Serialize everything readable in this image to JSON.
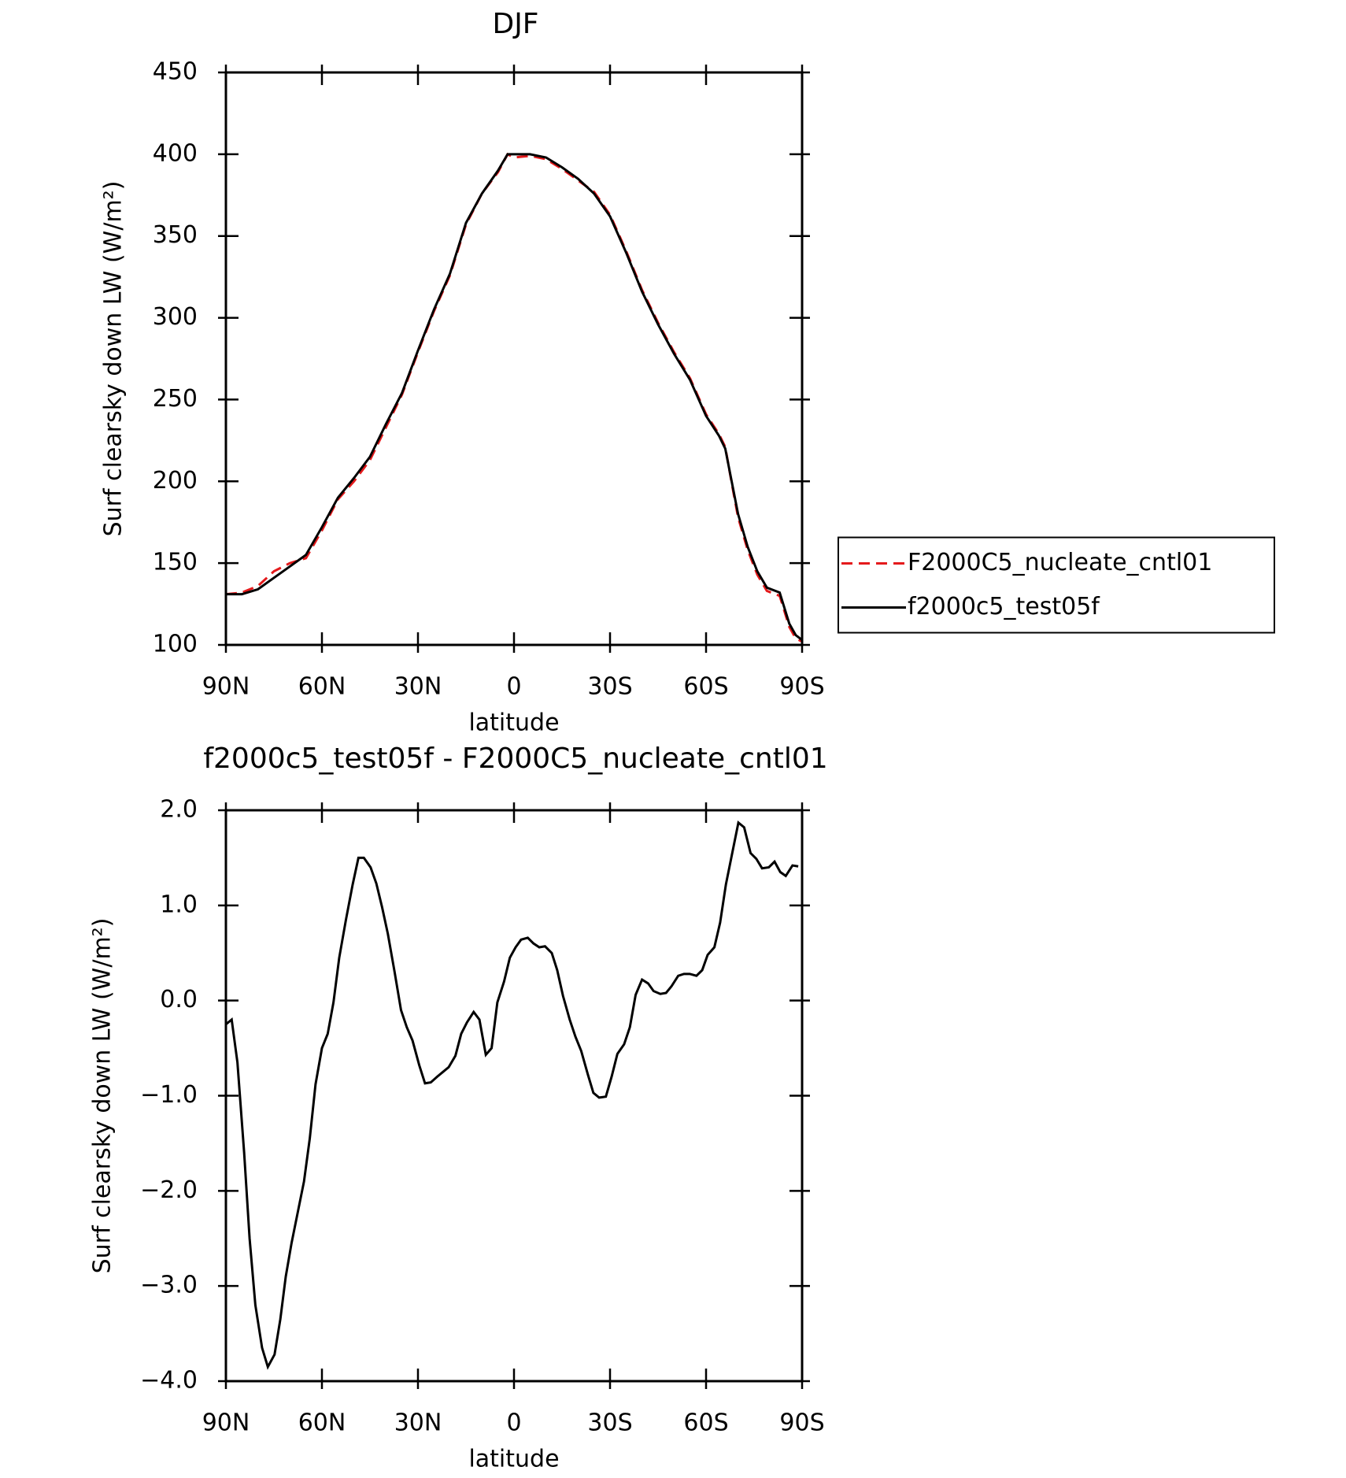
{
  "chart_data": [
    {
      "type": "line",
      "title": "DJF",
      "x_label": "latitude",
      "y_label": "Surf clearsky down LW (W/m²)",
      "x": [
        90,
        85,
        80,
        75,
        70,
        65,
        60,
        55,
        50,
        45,
        40,
        35,
        30,
        25,
        20,
        15,
        10,
        5,
        2,
        0,
        -5,
        -10,
        -15,
        -20,
        -25,
        -30,
        -35,
        -40,
        -45,
        -50,
        -55,
        -60,
        -64,
        -66,
        -68,
        -70,
        -73,
        -76,
        -79,
        -83,
        -86,
        -88,
        -90
      ],
      "series": [
        {
          "name": "F2000C5_nucleate_cntl01",
          "color": "#e41a1c",
          "linestyle": "dashed",
          "values": [
            131,
            132,
            136,
            145,
            150,
            153,
            170,
            189,
            200,
            213,
            233,
            253,
            279,
            304,
            326,
            357,
            376,
            389,
            400,
            398,
            399,
            397,
            391,
            384,
            377,
            363,
            341,
            317,
            297,
            279,
            263,
            241,
            229,
            221,
            199,
            178,
            158,
            143,
            133,
            130,
            111,
            104,
            102
          ]
        },
        {
          "name": "f2000c5_test05f",
          "color": "#000000",
          "linestyle": "solid",
          "values": [
            131,
            131,
            134,
            141,
            148,
            155,
            172,
            190,
            202,
            215,
            235,
            254,
            280,
            305,
            327,
            358,
            376,
            390,
            400,
            400,
            400,
            398,
            392,
            385,
            376,
            362,
            340,
            316,
            296,
            278,
            262,
            240,
            228,
            220,
            200,
            180,
            160,
            145,
            135,
            132,
            113,
            106,
            103
          ]
        }
      ],
      "xlim": [
        90,
        -90
      ],
      "xticks": [
        {
          "value": 90,
          "label": "90N"
        },
        {
          "value": 60,
          "label": "60N"
        },
        {
          "value": 30,
          "label": "30N"
        },
        0,
        {
          "value": -30,
          "label": "30S"
        },
        {
          "value": -60,
          "label": "60S"
        },
        {
          "value": -90,
          "label": "90S"
        }
      ],
      "ylim": [
        100,
        450
      ],
      "yticks": [
        100,
        150,
        200,
        250,
        300,
        350,
        400,
        450
      ],
      "legend": "right"
    },
    {
      "type": "line",
      "title": "f2000c5_test05f - F2000C5_nucleate_cntl01",
      "x_label": "latitude",
      "y_label": "Surf clearsky down LW (W/m²)",
      "x": [
        90,
        88.2,
        86.4,
        84.3,
        82.6,
        80.8,
        78.7,
        76.9,
        74.8,
        73,
        71.3,
        69.5,
        67.4,
        65.6,
        63.8,
        62,
        60,
        58.2,
        56.4,
        54.6,
        52.5,
        50.4,
        48.6,
        46.9,
        44.8,
        43,
        41.2,
        39.4,
        37.3,
        35.3,
        33.5,
        31.7,
        29.6,
        27.8,
        26,
        24,
        22.2,
        20.4,
        18.3,
        16.5,
        14.7,
        12.6,
        10.8,
        8.8,
        7,
        5.2,
        3.1,
        1.3,
        -0.5,
        -2.2,
        -4.3,
        -6.1,
        -7.9,
        -9.7,
        -11.8,
        -13.5,
        -15.3,
        -17.4,
        -19.2,
        -21,
        -23.1,
        -24.8,
        -26.6,
        -28.7,
        -30.5,
        -32.3,
        -34.4,
        -36.2,
        -38,
        -40,
        -41.9,
        -43.6,
        -45.7,
        -47.5,
        -49.2,
        -51.3,
        -53.1,
        -54.9,
        -57,
        -58.8,
        -60.5,
        -62.6,
        -64.4,
        -66.2,
        -68.3,
        -70.1,
        -71.9,
        -73.9,
        -75.7,
        -77.5,
        -79.6,
        -81.4,
        -83.2,
        -84.9,
        -87,
        -88.8
      ],
      "series": [
        {
          "name": "f2000c5_test05f",
          "color": "#000000",
          "linestyle": "solid",
          "values": [
            -0.25,
            -0.2,
            -0.65,
            -1.6,
            -2.5,
            -3.2,
            -3.65,
            -3.85,
            -3.72,
            -3.35,
            -2.9,
            -2.55,
            -2.2,
            -1.9,
            -1.45,
            -0.88,
            -0.5,
            -0.35,
            -0.02,
            0.45,
            0.85,
            1.22,
            1.5,
            1.5,
            1.4,
            1.23,
            0.98,
            0.7,
            0.3,
            -0.1,
            -0.28,
            -0.42,
            -0.68,
            -0.87,
            -0.86,
            -0.8,
            -0.75,
            -0.7,
            -0.58,
            -0.35,
            -0.23,
            -0.12,
            -0.2,
            -0.57,
            -0.5,
            -0.02,
            0.2,
            0.45,
            0.56,
            0.64,
            0.66,
            0.6,
            0.56,
            0.57,
            0.5,
            0.32,
            0.05,
            -0.2,
            -0.38,
            -0.53,
            -0.78,
            -0.97,
            -1.02,
            -1.01,
            -0.8,
            -0.56,
            -0.46,
            -0.28,
            0.06,
            0.22,
            0.18,
            0.1,
            0.07,
            0.08,
            0.15,
            0.26,
            0.28,
            0.28,
            0.26,
            0.32,
            0.48,
            0.56,
            0.82,
            1.22,
            1.57,
            1.87,
            1.82,
            1.55,
            1.49,
            1.39,
            1.4,
            1.46,
            1.35,
            1.31,
            1.42,
            1.41
          ]
        }
      ],
      "xlim": [
        90,
        -90
      ],
      "xticks": [
        {
          "value": 90,
          "label": "90N"
        },
        {
          "value": 60,
          "label": "60N"
        },
        {
          "value": 30,
          "label": "30N"
        },
        0,
        {
          "value": -30,
          "label": "30S"
        },
        {
          "value": -60,
          "label": "60S"
        },
        {
          "value": -90,
          "label": "90S"
        }
      ],
      "ylim": [
        -4,
        2
      ],
      "yticks": [
        {
          "value": -4,
          "label": "−4.0"
        },
        {
          "value": -3,
          "label": "−3.0"
        },
        {
          "value": -2,
          "label": "−2.0"
        },
        {
          "value": -1,
          "label": "−1.0"
        },
        {
          "value": 0,
          "label": "0.0"
        },
        {
          "value": 1,
          "label": "1.0"
        },
        {
          "value": 2,
          "label": "2.0"
        }
      ]
    }
  ]
}
